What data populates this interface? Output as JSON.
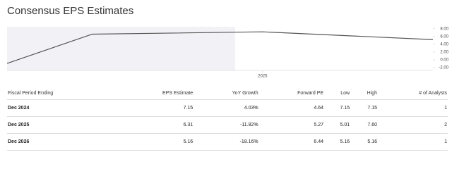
{
  "title": "Consensus EPS Estimates",
  "chart_data": {
    "type": "line",
    "x": [
      2023.5,
      2024,
      2025,
      2026
    ],
    "xlim": [
      2023.5,
      2026
    ],
    "xticks": [
      2025
    ],
    "series": [
      {
        "name": null,
        "color": "#555555",
        "values": [
          -0.9,
          6.6,
          7.2,
          5.2
        ]
      }
    ],
    "ylim": [
      -2.7,
      8.5
    ],
    "yticks": [
      {
        "value": 8,
        "label": "8.00"
      },
      {
        "value": 6,
        "label": "6.00"
      },
      {
        "value": 4,
        "label": "4.00"
      },
      {
        "value": 2,
        "label": "2.00"
      },
      {
        "value": 0,
        "label": "0.00"
      },
      {
        "value": -2,
        "label": "-2.00"
      }
    ]
  },
  "table": {
    "header": [
      "Fiscal Period Ending",
      "EPS Estimate",
      "YoY Growth",
      "Forward PE",
      "Low",
      "High",
      "# of Analysts"
    ],
    "rows": [
      [
        "Dec 2024",
        "7.15",
        "4.03%",
        "4.64",
        "7.15",
        "7.15",
        "1"
      ],
      [
        "Dec 2025",
        "6.31",
        "-11.82%",
        "5.27",
        "5.01",
        "7.60",
        "2"
      ],
      [
        "Dec 2026",
        "5.16",
        "-18.16%",
        "6.44",
        "5.16",
        "5.16",
        "1"
      ]
    ]
  }
}
